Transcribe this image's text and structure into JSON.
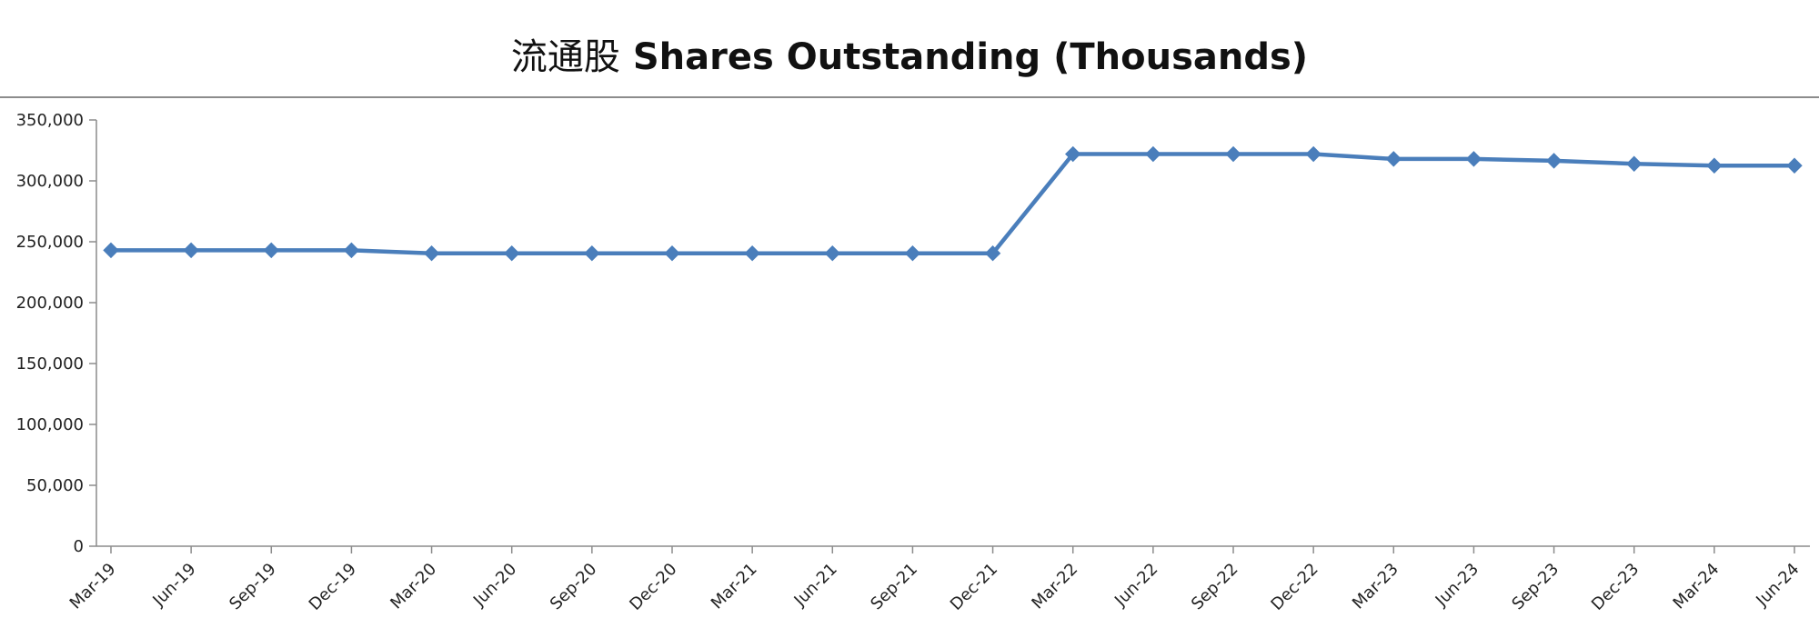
{
  "chart_data": {
    "type": "line",
    "title_cn": "流通股",
    "title_en": "Shares Outstanding (Thousands)",
    "xlabel": "",
    "ylabel": "",
    "ylim": [
      0,
      350000
    ],
    "y_ticks": [
      "0",
      "50,000",
      "100,000",
      "150,000",
      "200,000",
      "250,000",
      "300,000",
      "350,000"
    ],
    "y_tick_values": [
      0,
      50000,
      100000,
      150000,
      200000,
      250000,
      300000,
      350000
    ],
    "categories": [
      "Mar-19",
      "Jun-19",
      "Sep-19",
      "Dec-19",
      "Mar-20",
      "Jun-20",
      "Sep-20",
      "Dec-20",
      "Mar-21",
      "Jun-21",
      "Sep-21",
      "Dec-21",
      "Mar-22",
      "Jun-22",
      "Sep-22",
      "Dec-22",
      "Mar-23",
      "Jun-23",
      "Sep-23",
      "Dec-23",
      "Mar-24",
      "Jun-24"
    ],
    "series": [
      {
        "values": [
          243000,
          243000,
          243000,
          243000,
          240500,
          240500,
          240500,
          240500,
          240500,
          240500,
          240500,
          240500,
          322000,
          322000,
          322000,
          322000,
          318000,
          318000,
          316500,
          314000,
          312500,
          312500
        ]
      }
    ],
    "line_color": "#4a7ebb",
    "marker": "diamond",
    "grid": false,
    "legend": "none"
  }
}
